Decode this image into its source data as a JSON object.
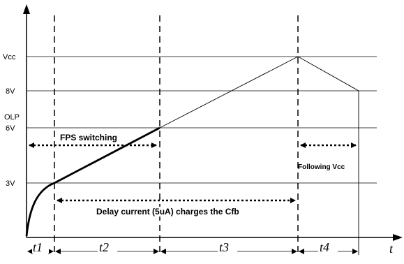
{
  "y_labels": {
    "vcc": "Vcc",
    "v8": "8V",
    "olp": "OLP",
    "v6": "6V",
    "v3": "3V"
  },
  "annotations": {
    "fps_switching": "FPS switching",
    "following_vcc": "Following Vcc",
    "delay_current": "Delay current (5uA) charges the Cfb"
  },
  "intervals": [
    "t1",
    "t2",
    "t3",
    "t4"
  ],
  "axis": {
    "x_label": "t"
  },
  "colors": {
    "line": "#000000",
    "background": "#ffffff"
  }
}
